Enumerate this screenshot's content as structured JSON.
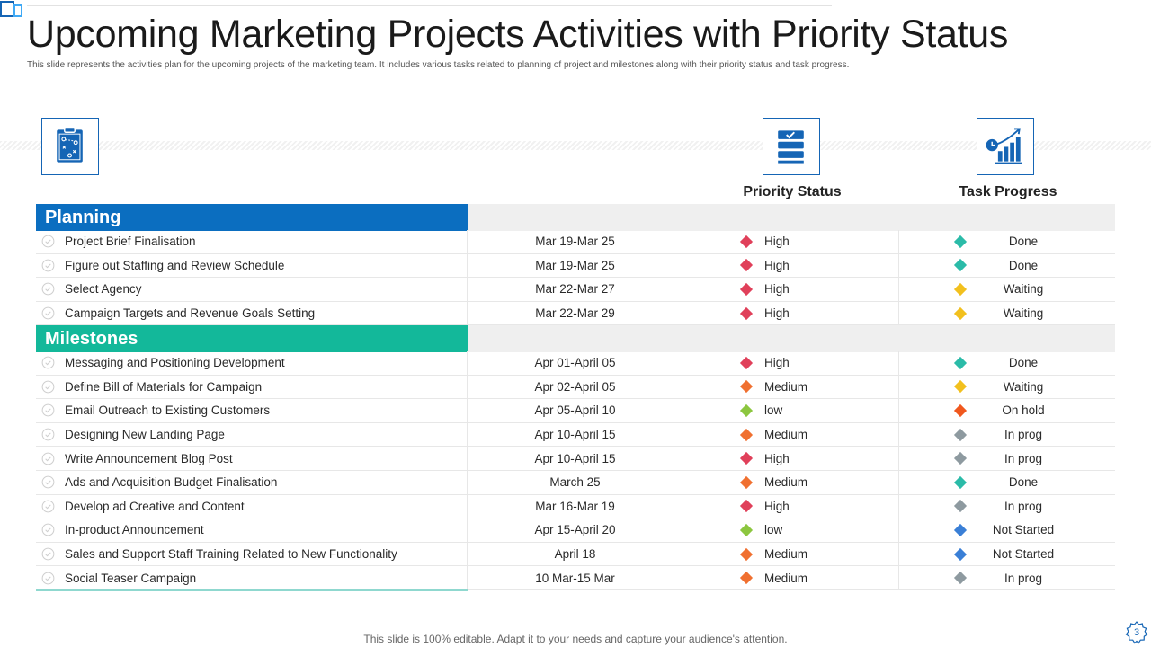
{
  "title": "Upcoming Marketing Projects Activities with Priority Status",
  "subtitle": "This slide represents the activities plan for the upcoming projects of the marketing team. It includes various tasks related to planning of project and milestones along with their priority status and task progress.",
  "icons": {
    "planning": "clipboard-strategy-icon",
    "priority": "checklist-stack-icon",
    "progress": "growth-chart-icon"
  },
  "columns": {
    "priority": "Priority Status",
    "progress": "Task Progress"
  },
  "colors": {
    "planning_header": "#0b6ec0",
    "milestones_header": "#13b89a",
    "High": "#e0405a",
    "Medium": "#f07030",
    "low": "#8cc63f",
    "Done": "#2bbba8",
    "Waiting": "#f2c01e",
    "On hold": "#f0581e",
    "In prog": "#8e9aa0",
    "Not Started": "#3a7fd6"
  },
  "sections": {
    "planning": {
      "label": "Planning",
      "rows": [
        {
          "task": "Project Brief Finalisation",
          "date": "Mar 19-Mar 25",
          "priority": "High",
          "progress": "Done"
        },
        {
          "task": "Figure out  Staffing and Review  Schedule",
          "date": "Mar 19-Mar 25",
          "priority": "High",
          "progress": "Done"
        },
        {
          "task": "Select Agency",
          "date": "Mar 22-Mar 27",
          "priority": "High",
          "progress": "Waiting"
        },
        {
          "task": "Campaign Targets and Revenue  Goals Setting",
          "date": "Mar 22-Mar 29",
          "priority": "High",
          "progress": "Waiting"
        }
      ]
    },
    "milestones": {
      "label": "Milestones",
      "rows": [
        {
          "task": "Messaging and Positioning Development",
          "date": "Apr 01-April  05",
          "priority": "High",
          "progress": "Done"
        },
        {
          "task": "Define  Bill of Materials for Campaign",
          "date": "Apr 02-April  05",
          "priority": "Medium",
          "progress": "Waiting"
        },
        {
          "task": "Email Outreach to Existing Customers",
          "date": "Apr 05-April  10",
          "priority": "low",
          "progress": "On hold"
        },
        {
          "task": "Designing New Landing Page",
          "date": "Apr 10-April  15",
          "priority": "Medium",
          "progress": "In prog"
        },
        {
          "task": "Write Announcement Blog Post",
          "date": "Apr 10-April  15",
          "priority": "High",
          "progress": "In prog"
        },
        {
          "task": "Ads and Acquisition Budget Finalisation",
          "date": "March 25",
          "priority": "Medium",
          "progress": "Done"
        },
        {
          "task": "Develop  ad Creative  and Content",
          "date": "Mar 16-Mar 19",
          "priority": "High",
          "progress": "In prog"
        },
        {
          "task": "In-product  Announcement",
          "date": "Apr 15-April  20",
          "priority": "low",
          "progress": "Not Started"
        },
        {
          "task": "Sales and Support  Staff Training  Related to New Functionality",
          "date": "April 18",
          "priority": "Medium",
          "progress": "Not Started"
        },
        {
          "task": "Social Teaser Campaign",
          "date": "10 Mar-15  Mar",
          "priority": "Medium",
          "progress": "In prog"
        }
      ]
    }
  },
  "footer": "This slide is 100% editable. Adapt it to your needs and capture your audience's attention.",
  "page_number": "3"
}
